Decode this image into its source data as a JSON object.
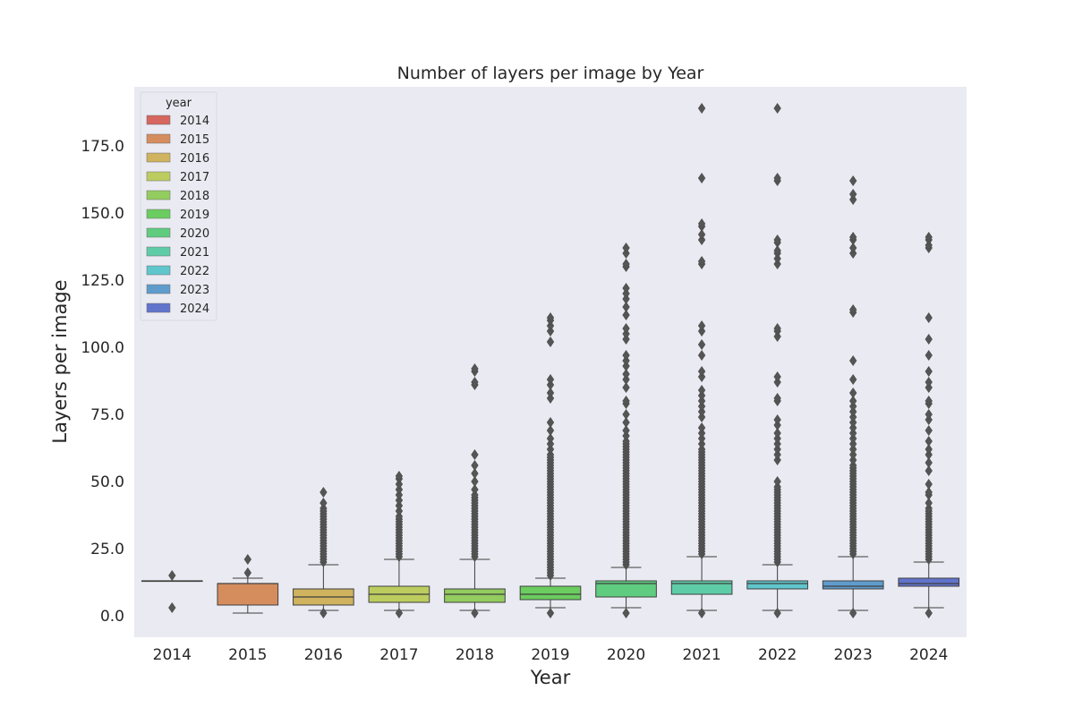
{
  "chart_data": {
    "type": "box",
    "title": "Number of layers per image by Year",
    "xlabel": "Year",
    "ylabel": "Layers per image",
    "ylim": [
      -8,
      197
    ],
    "yticks": [
      0.0,
      25.0,
      50.0,
      75.0,
      100.0,
      125.0,
      150.0,
      175.0
    ],
    "ytick_labels": [
      "0.0",
      "25.0",
      "50.0",
      "75.0",
      "100.0",
      "125.0",
      "150.0",
      "175.0"
    ],
    "grid": false,
    "legend": {
      "title": "year",
      "placement": "top-left"
    },
    "categories": [
      "2014",
      "2015",
      "2016",
      "2017",
      "2018",
      "2019",
      "2020",
      "2021",
      "2022",
      "2023",
      "2024"
    ],
    "colors": [
      "#d6665f",
      "#d68d5e",
      "#cfb35e",
      "#bccc5f",
      "#93cc5f",
      "#6bcc5f",
      "#5fcc7f",
      "#5fcca8",
      "#5fc6cc",
      "#5f9ccc",
      "#6174cc"
    ],
    "boxes": [
      {
        "year": "2014",
        "whislo": 13,
        "q1": 13,
        "median": 13,
        "q3": 13,
        "whishi": 13,
        "fliers": [
          3,
          15
        ]
      },
      {
        "year": "2015",
        "whislo": 1,
        "q1": 4,
        "median": 12,
        "q3": 12,
        "whishi": 14,
        "fliers": [
          16,
          21
        ]
      },
      {
        "year": "2016",
        "whislo": 2,
        "q1": 4,
        "median": 7,
        "q3": 10,
        "whishi": 19,
        "fliers": [
          1,
          20,
          21,
          22,
          23,
          24,
          25,
          26,
          27,
          28,
          29,
          30,
          31,
          32,
          33,
          34,
          35,
          36,
          37,
          38,
          39,
          40,
          42,
          46
        ]
      },
      {
        "year": "2017",
        "whislo": 2,
        "q1": 5,
        "median": 8,
        "q3": 11,
        "whishi": 21,
        "fliers": [
          1,
          22,
          23,
          24,
          25,
          26,
          27,
          28,
          29,
          30,
          31,
          32,
          33,
          34,
          35,
          36,
          37,
          39,
          41,
          43,
          45,
          47,
          49,
          51,
          52
        ]
      },
      {
        "year": "2018",
        "whislo": 2,
        "q1": 5,
        "median": 8,
        "q3": 10,
        "whishi": 21,
        "fliers": [
          1,
          22,
          23,
          24,
          25,
          26,
          27,
          28,
          29,
          30,
          31,
          32,
          33,
          34,
          35,
          36,
          37,
          38,
          39,
          40,
          41,
          42,
          43,
          44,
          45,
          47,
          50,
          53,
          56,
          60,
          86,
          87,
          91,
          92
        ]
      },
      {
        "year": "2019",
        "whislo": 3,
        "q1": 6,
        "median": 8,
        "q3": 11,
        "whishi": 14,
        "fliers": [
          1,
          15,
          16,
          17,
          18,
          19,
          20,
          21,
          22,
          23,
          24,
          25,
          26,
          27,
          28,
          29,
          30,
          31,
          32,
          33,
          34,
          35,
          36,
          37,
          38,
          39,
          40,
          41,
          42,
          43,
          44,
          45,
          46,
          47,
          48,
          49,
          50,
          51,
          52,
          53,
          54,
          55,
          56,
          57,
          58,
          59,
          60,
          62,
          64,
          66,
          69,
          72,
          81,
          83,
          86,
          88,
          102,
          106,
          108,
          110,
          111
        ]
      },
      {
        "year": "2020",
        "whislo": 3,
        "q1": 7,
        "median": 12,
        "q3": 13,
        "whishi": 18,
        "fliers": [
          1,
          19,
          20,
          21,
          22,
          23,
          24,
          25,
          26,
          27,
          28,
          29,
          30,
          31,
          32,
          33,
          34,
          35,
          36,
          37,
          38,
          39,
          40,
          41,
          42,
          43,
          44,
          45,
          46,
          47,
          48,
          49,
          50,
          51,
          52,
          53,
          54,
          55,
          56,
          57,
          58,
          59,
          60,
          61,
          62,
          63,
          64,
          65,
          67,
          69,
          72,
          75,
          79,
          80,
          85,
          88,
          90,
          93,
          95,
          97,
          103,
          105,
          107,
          112,
          115,
          118,
          120,
          122,
          130,
          131,
          135,
          137
        ]
      },
      {
        "year": "2021",
        "whislo": 2,
        "q1": 8,
        "median": 12,
        "q3": 13,
        "whishi": 22,
        "fliers": [
          1,
          23,
          24,
          25,
          26,
          27,
          28,
          29,
          30,
          31,
          32,
          33,
          34,
          35,
          36,
          37,
          38,
          39,
          40,
          41,
          42,
          43,
          44,
          45,
          46,
          47,
          48,
          49,
          50,
          51,
          52,
          53,
          54,
          55,
          56,
          57,
          58,
          59,
          60,
          61,
          62,
          64,
          66,
          68,
          70,
          74,
          76,
          78,
          80,
          82,
          84,
          89,
          91,
          97,
          101,
          106,
          108,
          131,
          132,
          140,
          142,
          145,
          146,
          163,
          189
        ]
      },
      {
        "year": "2022",
        "whislo": 2,
        "q1": 10,
        "median": 12,
        "q3": 13,
        "whishi": 19,
        "fliers": [
          1,
          20,
          21,
          22,
          23,
          24,
          25,
          26,
          27,
          28,
          29,
          30,
          31,
          32,
          33,
          34,
          35,
          36,
          37,
          38,
          39,
          40,
          41,
          42,
          43,
          44,
          45,
          46,
          47,
          48,
          50,
          58,
          60,
          62,
          64,
          66,
          68,
          71,
          73,
          80,
          81,
          87,
          89,
          104,
          106,
          107,
          131,
          133,
          135,
          136,
          139,
          140,
          162,
          163,
          189
        ]
      },
      {
        "year": "2023",
        "whislo": 2,
        "q1": 10,
        "median": 11,
        "q3": 13,
        "whishi": 22,
        "fliers": [
          1,
          23,
          24,
          25,
          26,
          27,
          28,
          29,
          30,
          31,
          32,
          33,
          34,
          35,
          36,
          37,
          38,
          39,
          40,
          41,
          42,
          43,
          44,
          45,
          46,
          47,
          48,
          49,
          50,
          51,
          52,
          53,
          54,
          55,
          56,
          58,
          60,
          62,
          64,
          66,
          68,
          70,
          72,
          74,
          76,
          78,
          80,
          83,
          88,
          95,
          113,
          114,
          135,
          137,
          140,
          141,
          155,
          157,
          162
        ]
      },
      {
        "year": "2024",
        "whislo": 3,
        "q1": 11,
        "median": 12,
        "q3": 14,
        "whishi": 20,
        "fliers": [
          1,
          21,
          22,
          23,
          24,
          25,
          26,
          27,
          28,
          29,
          30,
          31,
          32,
          33,
          34,
          35,
          36,
          37,
          38,
          39,
          40,
          42,
          45,
          46,
          49,
          54,
          57,
          60,
          62,
          65,
          69,
          73,
          75,
          79,
          80,
          85,
          87,
          91,
          97,
          103,
          111,
          137,
          138,
          140,
          141
        ]
      }
    ]
  }
}
